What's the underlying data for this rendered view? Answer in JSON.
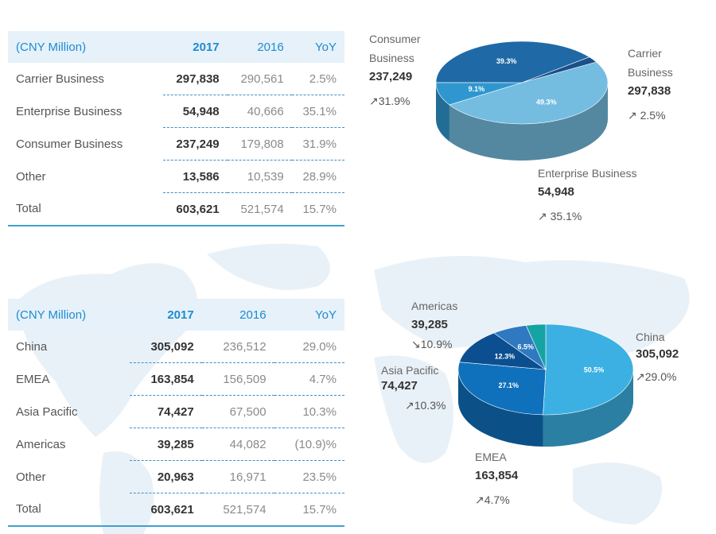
{
  "business_table": {
    "header": {
      "label": "(CNY Million)",
      "y2017": "2017",
      "y2016": "2016",
      "yoy": "YoY"
    },
    "rows": [
      {
        "name": "Carrier Business",
        "v2017": "297,838",
        "v2016": "290,561",
        "yoy": "2.5%"
      },
      {
        "name": "Enterprise Business",
        "v2017": "54,948",
        "v2016": "40,666",
        "yoy": "35.1%"
      },
      {
        "name": "Consumer Business",
        "v2017": "237,249",
        "v2016": "179,808",
        "yoy": "31.9%"
      },
      {
        "name": "Other",
        "v2017": "13,586",
        "v2016": "10,539",
        "yoy": "28.9%"
      },
      {
        "name": "Total",
        "v2017": "603,621",
        "v2016": "521,574",
        "yoy": "15.7%"
      }
    ]
  },
  "business_pie_labels": {
    "consumer": {
      "name1": "Consumer",
      "name2": "Business",
      "value": "237,249",
      "growth": "↗31.9%"
    },
    "carrier": {
      "name1": "Carrier",
      "name2": "Business",
      "value": "297,838",
      "growth": "↗ 2.5%"
    },
    "enterprise": {
      "name1": "Enterprise Business",
      "value": "54,948",
      "growth": "↗ 35.1%"
    }
  },
  "region_table": {
    "header": {
      "label": "(CNY Million)",
      "y2017": "2017",
      "y2016": "2016",
      "yoy": "YoY"
    },
    "rows": [
      {
        "name": "China",
        "v2017": "305,092",
        "v2016": "236,512",
        "yoy": "29.0%"
      },
      {
        "name": "EMEA",
        "v2017": "163,854",
        "v2016": "156,509",
        "yoy": "4.7%"
      },
      {
        "name": "Asia Pacific",
        "v2017": "74,427",
        "v2016": "67,500",
        "yoy": "10.3%"
      },
      {
        "name": "Americas",
        "v2017": "39,285",
        "v2016": "44,082",
        "yoy": "(10.9)%"
      },
      {
        "name": "Other",
        "v2017": "20,963",
        "v2016": "16,971",
        "yoy": "23.5%"
      },
      {
        "name": "Total",
        "v2017": "603,621",
        "v2016": "521,574",
        "yoy": "15.7%"
      }
    ]
  },
  "region_pie_labels": {
    "americas": {
      "name": "Americas",
      "value": "39,285",
      "growth": "↘10.9%"
    },
    "asia": {
      "name": "Asia Pacific",
      "value": "74,427",
      "growth": "↗10.3%"
    },
    "china": {
      "name": "China",
      "value": "305,092",
      "growth": "↗29.0%"
    },
    "emea": {
      "name": "EMEA",
      "value": "163,854",
      "growth": "↗4.7%"
    }
  },
  "chart_data": [
    {
      "type": "pie",
      "slices": [
        {
          "label": "Carrier Business",
          "value": 49.3,
          "display": "49.3%",
          "color": "#74bde0"
        },
        {
          "label": "Enterprise Business",
          "value": 9.1,
          "display": "9.1%",
          "color": "#2f97d0"
        },
        {
          "label": "Consumer Business",
          "value": 39.3,
          "display": "39.3%",
          "color": "#1f6aa6"
        },
        {
          "label": "Other",
          "value": 2.3,
          "display": "",
          "color": "#1a4f8a"
        }
      ]
    },
    {
      "type": "pie",
      "slices": [
        {
          "label": "China",
          "value": 50.5,
          "display": "50.5%",
          "color": "#3cb0e2"
        },
        {
          "label": "EMEA",
          "value": 27.1,
          "display": "27.1%",
          "color": "#0f70bb"
        },
        {
          "label": "Asia Pacific",
          "value": 12.3,
          "display": "12.3%",
          "color": "#0b4f91"
        },
        {
          "label": "Americas",
          "value": 6.5,
          "display": "6.5%",
          "color": "#2f79c0"
        },
        {
          "label": "Other",
          "value": 3.6,
          "display": "",
          "color": "#16a3a4"
        }
      ]
    }
  ]
}
